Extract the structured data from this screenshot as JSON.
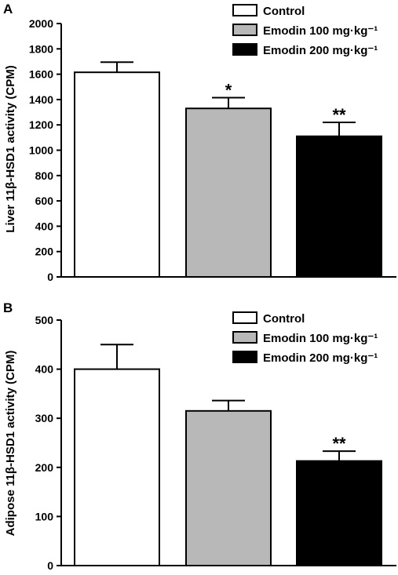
{
  "chart_data": [
    {
      "type": "bar",
      "panel_label": "A",
      "ylabel": "Liver 11β-HSD1 activity (CPM)",
      "ylim": [
        0,
        2000
      ],
      "yticks": [
        0,
        200,
        400,
        600,
        800,
        1000,
        1200,
        1400,
        1600,
        1800,
        2000
      ],
      "categories": [
        "Control",
        "Emodin 100 mg·kg⁻¹",
        "Emodin 200 mg·kg⁻¹"
      ],
      "values": [
        1615,
        1330,
        1110
      ],
      "errors": [
        80,
        85,
        110
      ],
      "significance": [
        "",
        "*",
        "**"
      ],
      "colors": [
        "#ffffff",
        "#b8b8b8",
        "#000000"
      ],
      "legend": {
        "position": "top-right",
        "entries": [
          "Control",
          "Emodin 100 mg·kg⁻¹",
          "Emodin 200 mg·kg⁻¹"
        ]
      }
    },
    {
      "type": "bar",
      "panel_label": "B",
      "ylabel": "Adipose 11β-HSD1 activity (CPM)",
      "ylim": [
        0,
        500
      ],
      "yticks": [
        0,
        100,
        200,
        300,
        400,
        500
      ],
      "categories": [
        "Control",
        "Emodin 100 mg·kg⁻¹",
        "Emodin 200 mg·kg⁻¹"
      ],
      "values": [
        400,
        315,
        213
      ],
      "errors": [
        50,
        21,
        20
      ],
      "significance": [
        "",
        "",
        "**"
      ],
      "colors": [
        "#ffffff",
        "#b8b8b8",
        "#000000"
      ],
      "legend": {
        "position": "top-right",
        "entries": [
          "Control",
          "Emodin 100 mg·kg⁻¹",
          "Emodin 200 mg·kg⁻¹"
        ]
      }
    }
  ]
}
